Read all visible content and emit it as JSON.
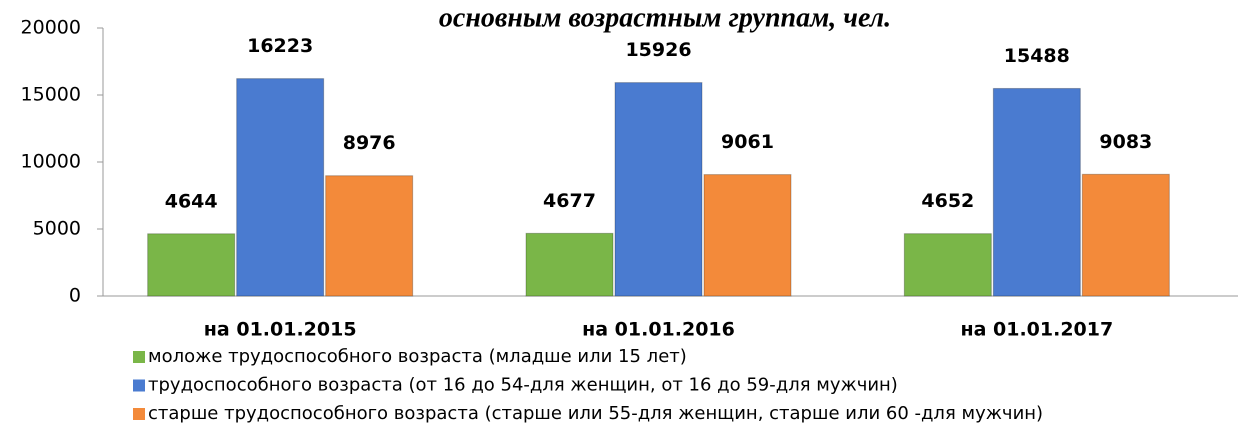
{
  "chart_data": {
    "type": "bar",
    "title": "основным возрастным группам, чел.",
    "categories": [
      "на 01.01.2015",
      "на 01.01.2016",
      "на 01.01.2017"
    ],
    "series": [
      {
        "name": "моложе трудоспособного возраста (младше или 15 лет)",
        "color": "#7ab648",
        "values": [
          4644,
          4677,
          4652
        ]
      },
      {
        "name": "трудоспособного возраста (от 16 до 54-для женщин, от 16 до 59-для мужчин)",
        "color": "#4a7bd0",
        "values": [
          16223,
          15926,
          15488
        ]
      },
      {
        "name": "старше трудоспособного возраста (старше или 55-для женщин, старше или 60 -для мужчин)",
        "color": "#f38a3a",
        "values": [
          8976,
          9061,
          9083
        ]
      }
    ],
    "ylim": [
      0,
      20000
    ],
    "yticks": [
      0,
      5000,
      10000,
      15000,
      20000
    ],
    "grid": false,
    "legend": "bottom"
  }
}
